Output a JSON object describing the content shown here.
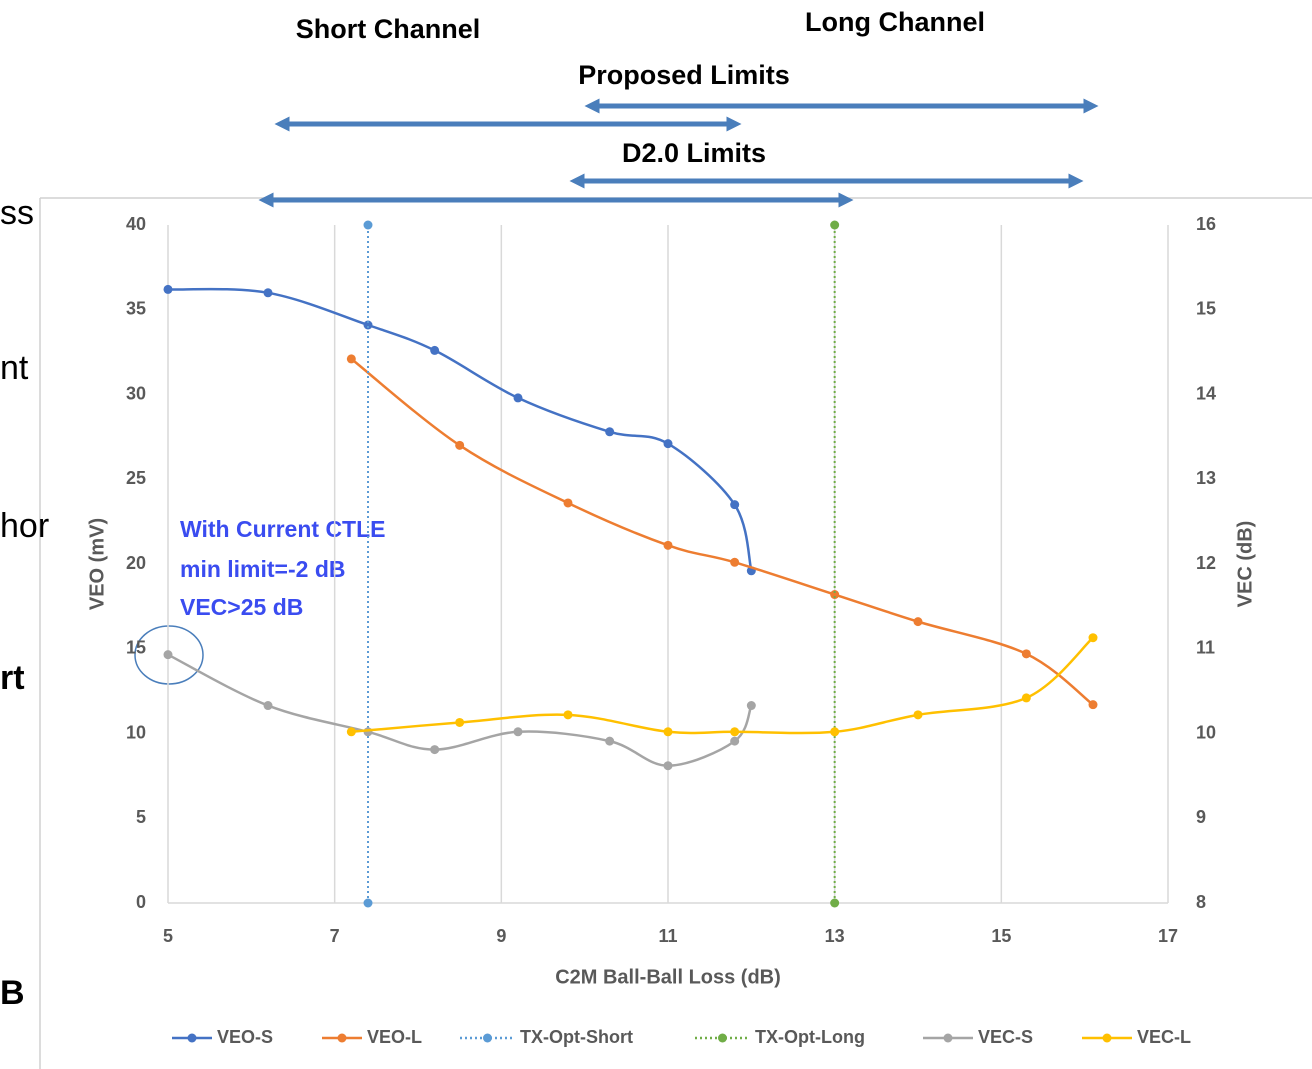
{
  "chart_data": {
    "type": "line",
    "annotations": {
      "short_channel": "Short Channel",
      "long_channel": "Long Channel",
      "proposed_limits": "Proposed Limits",
      "d20_limits": "D2.0 Limits",
      "note": [
        "With Current CTLE",
        "min limit=-2 dB",
        "VEC>25 dB"
      ]
    },
    "background_fragments": [
      "ss",
      "nt",
      "hor",
      "rt",
      "B"
    ],
    "xlabel": "C2M Ball-Ball Loss (dB)",
    "ylabel": "VEO (mV)",
    "y2label": "VEC (dB)",
    "xlim": [
      5,
      17
    ],
    "xticks": [
      5,
      7,
      9,
      11,
      13,
      15,
      17
    ],
    "ylim": [
      0,
      40
    ],
    "yticks": [
      0,
      5,
      10,
      15,
      20,
      25,
      30,
      35,
      40
    ],
    "y2lim": [
      8,
      16
    ],
    "y2ticks": [
      8,
      9,
      10,
      11,
      12,
      13,
      14,
      15,
      16
    ],
    "grid": "x",
    "legend": "bottom",
    "series": [
      {
        "name": "VEO-S",
        "color": "#4472c4",
        "smooth": true,
        "x": [
          5,
          6.2,
          7.4,
          8.2,
          9.2,
          10.3,
          11,
          11.8,
          12
        ],
        "values": [
          36.2,
          36,
          34.1,
          32.6,
          29.8,
          27.8,
          27.1,
          23.5,
          19.6
        ]
      },
      {
        "name": "VEO-L",
        "color": "#ed7d31",
        "smooth": true,
        "x": [
          7.2,
          8.5,
          9.8,
          11,
          11.8,
          13,
          14,
          15.3,
          16.1
        ],
        "values": [
          32.1,
          27,
          23.6,
          21.1,
          20.1,
          18.2,
          16.6,
          14.7,
          11.7
        ]
      },
      {
        "name": "TX-Opt-Short",
        "color": "#5b9bd5",
        "dash": "dotted",
        "x": [
          7.4,
          7.4
        ],
        "values": [
          0,
          40
        ]
      },
      {
        "name": "TX-Opt-Long",
        "color": "#70ad47",
        "dash": "dotted",
        "x": [
          13,
          13
        ],
        "values": [
          0,
          40
        ]
      },
      {
        "name": "VEC-S",
        "color": "#a5a5a5",
        "smooth": true,
        "axis": "y2",
        "x": [
          5,
          6.2,
          7.4,
          8.2,
          9.2,
          10.3,
          11,
          11.8,
          12
        ],
        "values": [
          10.93,
          10.33,
          10.02,
          9.81,
          10.02,
          9.91,
          9.62,
          9.91,
          10.33
        ]
      },
      {
        "name": "VEC-L",
        "color": "#ffc000",
        "smooth": true,
        "axis": "y2",
        "x": [
          7.2,
          8.5,
          9.8,
          11,
          11.8,
          13,
          14,
          15.3,
          16.1
        ],
        "values": [
          10.02,
          10.13,
          10.22,
          10.02,
          10.02,
          10.02,
          10.22,
          10.42,
          11.13
        ]
      }
    ]
  }
}
